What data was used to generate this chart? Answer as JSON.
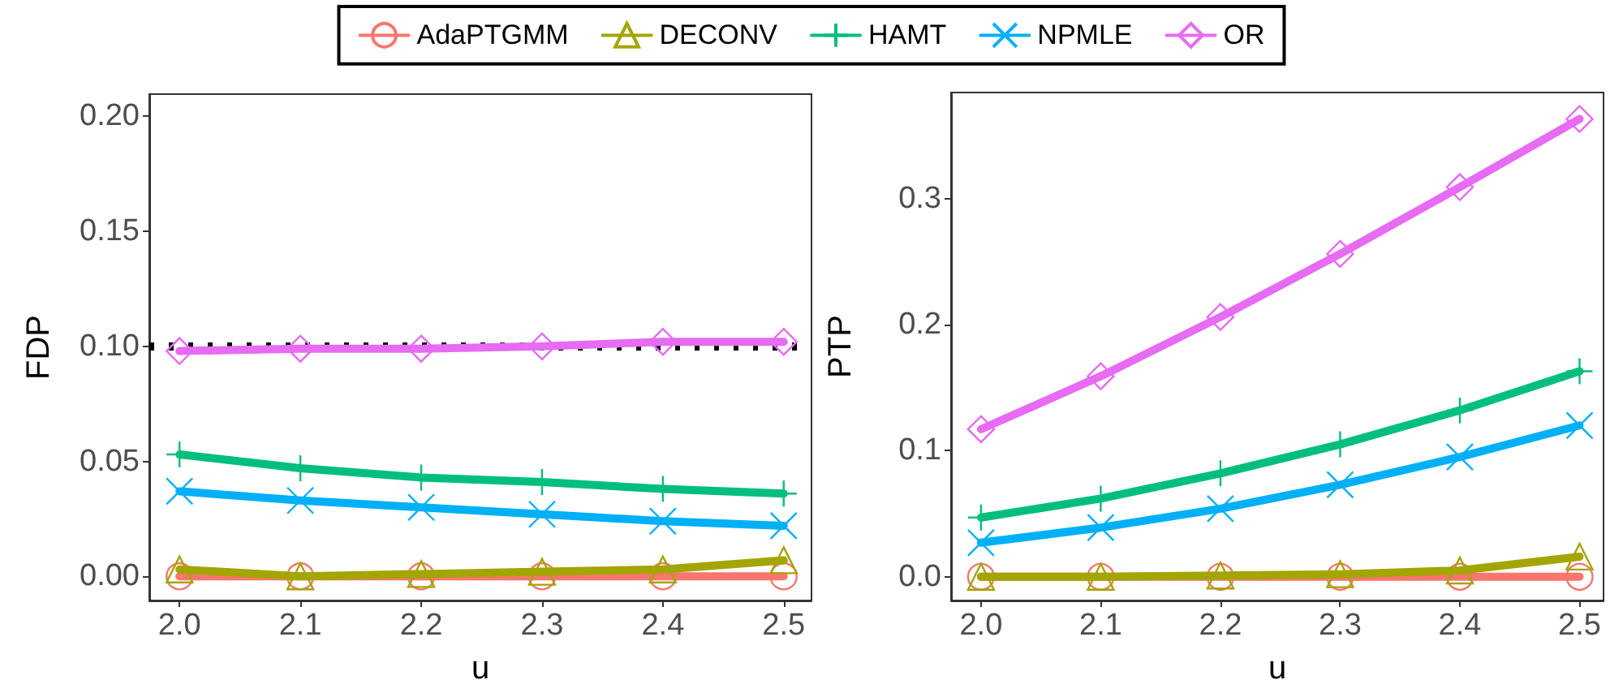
{
  "chart_data": [
    {
      "type": "line",
      "xlabel": "u",
      "ylabel": "FDP",
      "x": [
        2.0,
        2.1,
        2.2,
        2.3,
        2.4,
        2.5
      ],
      "xlim": [
        1.975,
        2.523
      ],
      "xticks": [
        {
          "value": 2.0,
          "label": "2.0"
        },
        {
          "value": 2.1,
          "label": "2.1"
        },
        {
          "value": 2.2,
          "label": "2.2"
        },
        {
          "value": 2.3,
          "label": "2.3"
        },
        {
          "value": 2.4,
          "label": "2.4"
        },
        {
          "value": 2.5,
          "label": "2.5"
        }
      ],
      "ylim": [
        -0.0105,
        0.2097
      ],
      "yticks": [
        {
          "value": 0,
          "label": "0.00"
        },
        {
          "value": 0.05,
          "label": "0.05"
        },
        {
          "value": 0.1,
          "label": "0.10"
        },
        {
          "value": 0.15,
          "label": "0.15"
        },
        {
          "value": 0.2,
          "label": "0.20"
        }
      ],
      "legend": "top",
      "grid": false,
      "line_style": "solid",
      "ref_lines": [
        {
          "axis": "y",
          "value": 0.1,
          "color": "#000000",
          "line_style": "dotted"
        }
      ],
      "series": [
        {
          "name": "AdaPTGMM",
          "color": "#f8766d",
          "marker": "circle",
          "values": [
            0,
            0,
            0,
            0,
            0,
            0
          ]
        },
        {
          "name": "DECONV",
          "color": "#a3a500",
          "marker": "triangle",
          "values": [
            0.003,
            0.0,
            0.001,
            0.002,
            0.003,
            0.007
          ]
        },
        {
          "name": "HAMT",
          "color": "#00bf7d",
          "marker": "plus",
          "values": [
            0.053,
            0.047,
            0.043,
            0.041,
            0.038,
            0.036
          ]
        },
        {
          "name": "NPMLE",
          "color": "#00b0f6",
          "marker": "cross",
          "values": [
            0.037,
            0.033,
            0.03,
            0.027,
            0.024,
            0.022
          ]
        },
        {
          "name": "OR",
          "color": "#e76bf3",
          "marker": "diamond",
          "values": [
            0.098,
            0.099,
            0.099,
            0.1,
            0.102,
            0.102
          ]
        }
      ]
    },
    {
      "type": "line",
      "xlabel": "u",
      "ylabel": "PTP",
      "x": [
        2.0,
        2.1,
        2.2,
        2.3,
        2.4,
        2.5
      ],
      "xlim": [
        1.975,
        2.52
      ],
      "xticks": [
        {
          "value": 2.0,
          "label": "2.0"
        },
        {
          "value": 2.1,
          "label": "2.1"
        },
        {
          "value": 2.2,
          "label": "2.2"
        },
        {
          "value": 2.3,
          "label": "2.3"
        },
        {
          "value": 2.4,
          "label": "2.4"
        },
        {
          "value": 2.5,
          "label": "2.5"
        }
      ],
      "ylim": [
        -0.0188,
        0.384
      ],
      "yticks": [
        {
          "value": 0,
          "label": "0.0"
        },
        {
          "value": 0.1,
          "label": "0.1"
        },
        {
          "value": 0.2,
          "label": "0.2"
        },
        {
          "value": 0.3,
          "label": "0.3"
        }
      ],
      "legend": false,
      "grid": false,
      "line_style": "solid",
      "series": [
        {
          "color": "#f8766d",
          "marker": "circle",
          "values": [
            0,
            0,
            0,
            0,
            0,
            0
          ]
        },
        {
          "color": "#a3a500",
          "marker": "triangle",
          "values": [
            0,
            0,
            0.001,
            0.002,
            0.005,
            0.016
          ]
        },
        {
          "color": "#00bf7d",
          "marker": "plus",
          "values": [
            0.047,
            0.062,
            0.082,
            0.105,
            0.132,
            0.163
          ]
        },
        {
          "color": "#00b0f6",
          "marker": "cross",
          "values": [
            0.027,
            0.039,
            0.054,
            0.073,
            0.095,
            0.12
          ]
        },
        {
          "color": "#e76bf3",
          "marker": "diamond",
          "values": [
            0.117,
            0.159,
            0.206,
            0.256,
            0.309,
            0.363
          ]
        }
      ]
    }
  ]
}
